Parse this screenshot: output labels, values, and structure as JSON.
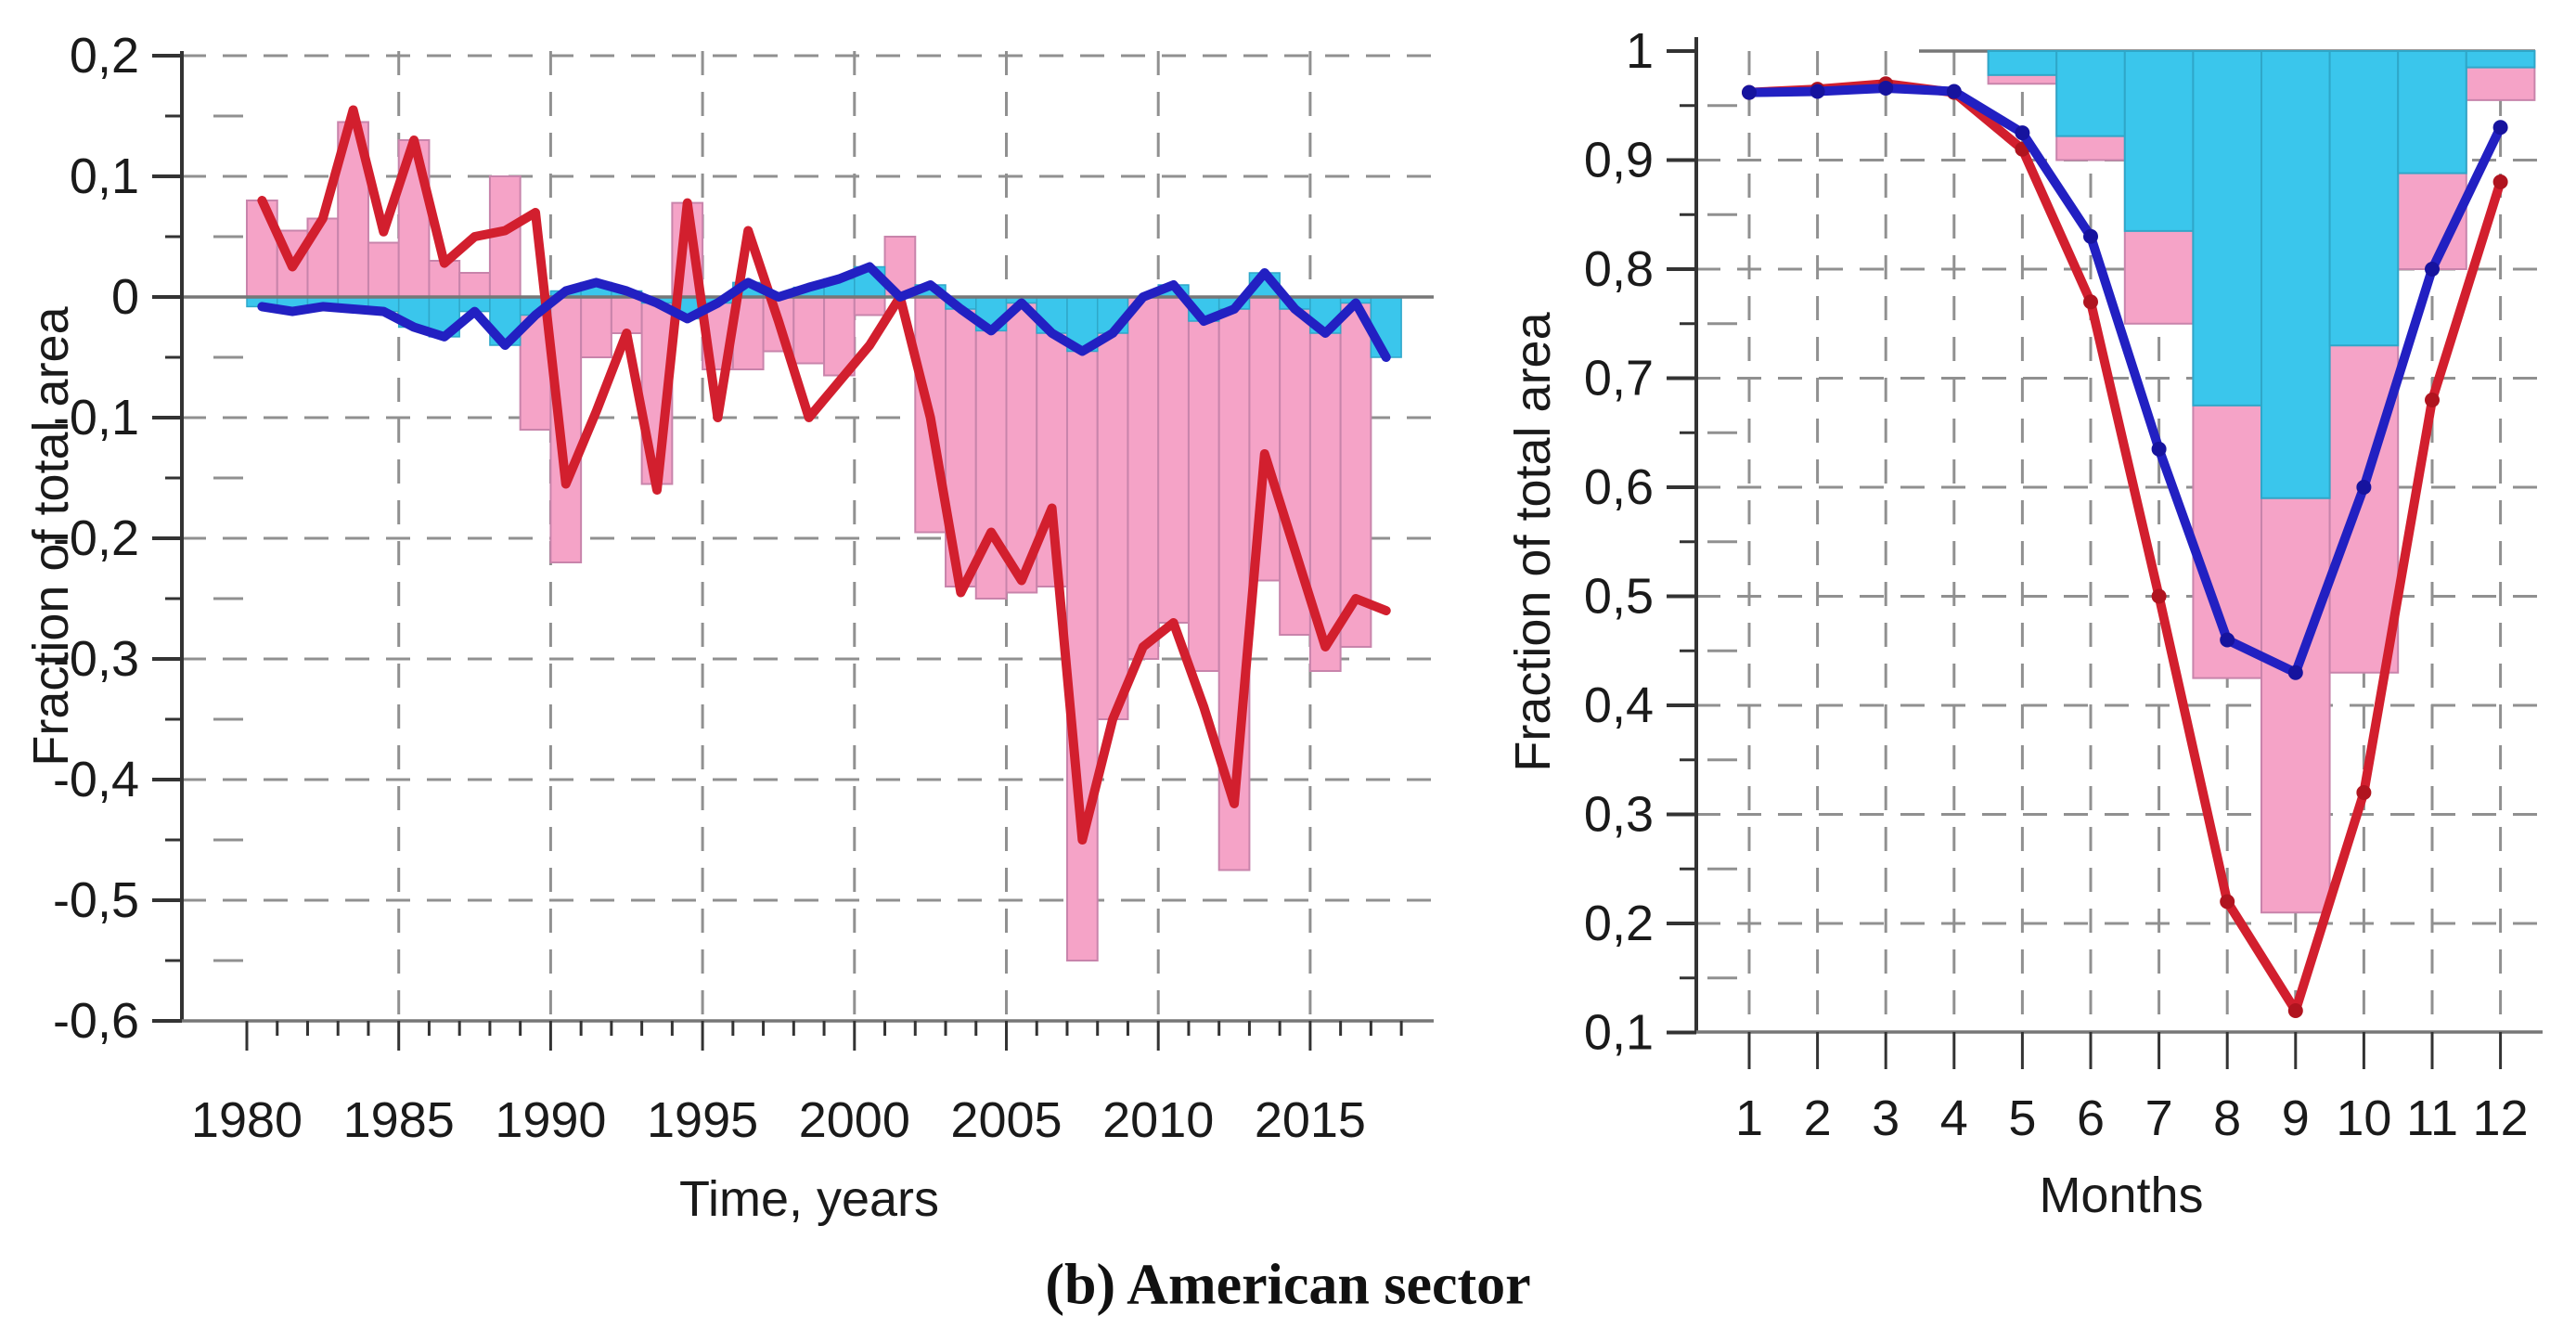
{
  "caption": "(b) American sector",
  "left_panel": {
    "ylabel": "Fraction of total area",
    "xlabel": "Time, years",
    "ytick_labels": [
      "0,2",
      "0,1",
      "0",
      "-0,1",
      "-0,2",
      "-0,3",
      "-0,4",
      "-0,5",
      "-0,6"
    ],
    "ytick_values": [
      0.2,
      0.1,
      0,
      -0.1,
      -0.2,
      -0.3,
      -0.4,
      -0.5,
      -0.6
    ],
    "xtick_labels": [
      "1980",
      "1985",
      "1990",
      "1995",
      "2000",
      "2005",
      "2010",
      "2015"
    ],
    "xtick_values": [
      1980,
      1985,
      1990,
      1995,
      2000,
      2005,
      2010,
      2015
    ]
  },
  "right_panel": {
    "ylabel": "Fraction of total area",
    "xlabel": "Months",
    "ytick_labels": [
      "1",
      "0,9",
      "0,8",
      "0,7",
      "0,6",
      "0,5",
      "0,4",
      "0,3",
      "0,2",
      "0,1"
    ],
    "ytick_values": [
      1,
      0.9,
      0.8,
      0.7,
      0.6,
      0.5,
      0.4,
      0.3,
      0.2,
      0.1
    ],
    "xtick_labels": [
      "1",
      "2",
      "3",
      "4",
      "5",
      "6",
      "7",
      "8",
      "9",
      "10",
      "11",
      "12"
    ],
    "xtick_values": [
      1,
      2,
      3,
      4,
      5,
      6,
      7,
      8,
      9,
      10,
      11,
      12
    ]
  },
  "colors": {
    "pink_bar": "#F5A3C7",
    "pink_bar_edge": "#C884AB",
    "cyan_bar": "#3AC6EC",
    "cyan_bar_edge": "#2FA7C9",
    "red_line": "#D21F2E",
    "blue_line": "#2220C2",
    "red_dot": "#B0141F",
    "blue_dot": "#16139E",
    "grid": "#909090",
    "zero_line": "#777777",
    "axis": "#333333"
  },
  "chart_data": [
    {
      "type": "bar+line",
      "title": "",
      "xlabel": "Time, years",
      "ylabel": "Fraction of total area",
      "ylim": [
        -0.6,
        0.2
      ],
      "xlim": [
        1980,
        2018
      ],
      "grid": true,
      "decimal_separator": ",",
      "categories": [
        1980,
        1981,
        1982,
        1983,
        1984,
        1985,
        1986,
        1987,
        1988,
        1989,
        1990,
        1991,
        1992,
        1993,
        1994,
        1995,
        1996,
        1997,
        1998,
        1999,
        2000,
        2001,
        2002,
        2003,
        2004,
        2005,
        2006,
        2007,
        2008,
        2009,
        2010,
        2011,
        2012,
        2013,
        2014,
        2015,
        2016,
        2017
      ],
      "series": [
        {
          "name": "pink-bars",
          "style": "bar",
          "color": "pink_bar",
          "values": [
            0.08,
            0.055,
            0.065,
            0.145,
            0.045,
            0.13,
            0.03,
            0.02,
            0.1,
            -0.11,
            -0.22,
            -0.05,
            -0.03,
            -0.155,
            0.078,
            -0.06,
            -0.06,
            -0.045,
            -0.055,
            -0.065,
            -0.015,
            0.05,
            -0.195,
            -0.24,
            -0.25,
            -0.245,
            -0.24,
            -0.55,
            -0.35,
            -0.3,
            -0.27,
            -0.31,
            -0.475,
            -0.235,
            -0.28,
            -0.31,
            -0.29,
            null
          ]
        },
        {
          "name": "cyan-bars",
          "style": "bar",
          "color": "cyan_bar",
          "values": [
            -0.008,
            -0.012,
            -0.008,
            -0.01,
            -0.012,
            -0.025,
            -0.033,
            -0.012,
            -0.04,
            -0.015,
            0.005,
            0.012,
            0.005,
            -0.005,
            -0.018,
            -0.005,
            0.012,
            0.0,
            0.008,
            0.015,
            0.025,
            0.0,
            0.01,
            -0.01,
            -0.028,
            -0.005,
            -0.03,
            -0.045,
            -0.03,
            0.0,
            0.01,
            -0.02,
            -0.01,
            0.02,
            -0.01,
            -0.03,
            -0.005,
            -0.05
          ]
        },
        {
          "name": "red-line",
          "style": "line",
          "color": "red_line",
          "values": [
            0.08,
            0.025,
            0.065,
            0.155,
            0.054,
            0.13,
            0.028,
            0.05,
            0.055,
            0.07,
            -0.155,
            -0.095,
            -0.03,
            -0.16,
            0.078,
            -0.1,
            0.055,
            -0.02,
            -0.1,
            -0.07,
            -0.04,
            0.0,
            -0.1,
            -0.245,
            -0.195,
            -0.235,
            -0.175,
            -0.45,
            -0.35,
            -0.29,
            -0.27,
            -0.34,
            -0.42,
            -0.13,
            -0.21,
            -0.29,
            -0.25,
            -0.26
          ]
        },
        {
          "name": "blue-line",
          "style": "line",
          "color": "blue_line",
          "values": [
            -0.008,
            -0.012,
            -0.008,
            -0.01,
            -0.012,
            -0.025,
            -0.033,
            -0.012,
            -0.04,
            -0.015,
            0.005,
            0.012,
            0.005,
            -0.005,
            -0.018,
            -0.005,
            0.012,
            0.0,
            0.008,
            0.015,
            0.025,
            0.0,
            0.01,
            -0.01,
            -0.028,
            -0.005,
            -0.03,
            -0.045,
            -0.03,
            0.0,
            0.01,
            -0.02,
            -0.01,
            0.02,
            -0.01,
            -0.03,
            -0.005,
            -0.05
          ]
        }
      ]
    },
    {
      "type": "bar+line",
      "title": "",
      "xlabel": "Months",
      "ylabel": "Fraction of total area",
      "ylim": [
        0.1,
        1.0
      ],
      "xlim": [
        1,
        12
      ],
      "grid": true,
      "bars_baseline": 1.0,
      "decimal_separator": ",",
      "categories": [
        1,
        2,
        3,
        4,
        5,
        6,
        7,
        8,
        9,
        10,
        11,
        12
      ],
      "series": [
        {
          "name": "pink-bars",
          "style": "bar",
          "color": "pink_bar",
          "values": [
            null,
            null,
            null,
            null,
            0.97,
            0.9,
            0.75,
            0.425,
            0.21,
            0.43,
            0.8,
            0.955
          ]
        },
        {
          "name": "cyan-bars",
          "style": "bar",
          "color": "cyan_bar",
          "values": [
            null,
            null,
            null,
            null,
            0.978,
            0.922,
            0.835,
            0.675,
            0.59,
            0.73,
            0.888,
            0.985
          ]
        },
        {
          "name": "red-line",
          "style": "line",
          "color": "red_line",
          "dots": true,
          "values": [
            0.962,
            0.965,
            0.97,
            0.962,
            0.91,
            0.77,
            0.5,
            0.22,
            0.12,
            0.32,
            0.68,
            0.88
          ]
        },
        {
          "name": "blue-line",
          "style": "line",
          "color": "blue_line",
          "dots": true,
          "values": [
            0.962,
            0.963,
            0.966,
            0.963,
            0.925,
            0.83,
            0.635,
            0.46,
            0.43,
            0.6,
            0.8,
            0.93
          ]
        }
      ]
    }
  ]
}
